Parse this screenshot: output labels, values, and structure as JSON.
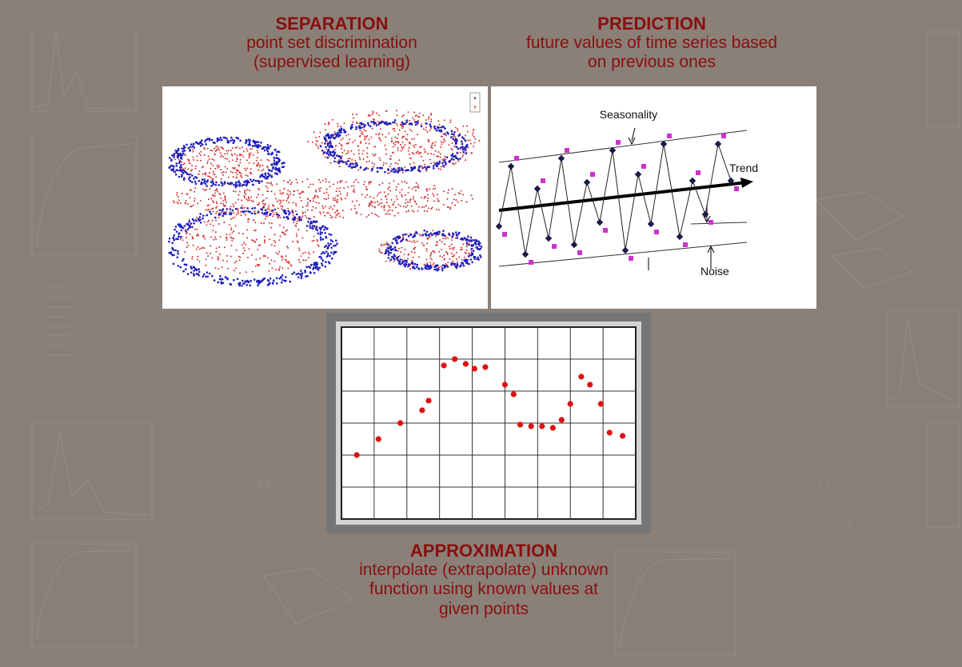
{
  "separation": {
    "title": "SEPARATION",
    "line1": "point set discrimination",
    "line2": "(supervised learning)",
    "class_colors": [
      "#1f1fbf",
      "#d63232"
    ],
    "legend_symbols": [
      "•",
      "+"
    ]
  },
  "prediction": {
    "title": "PREDICTION",
    "line1": "future values of time series based",
    "line2": "on previous ones",
    "labels": {
      "seasonality": "Seasonality",
      "trend": "Trend",
      "noise": "Noise"
    },
    "marker_colors": {
      "actual": "#1a1a4a",
      "predicted": "#cc33cc"
    }
  },
  "approximation": {
    "title": "APPROXIMATION",
    "line1": "interpolate (extrapolate) unknown",
    "line2": "function using known values at",
    "line3": "given points",
    "point_color": "#e01010"
  },
  "chart_data": {
    "type": "scatter",
    "grid": true,
    "x": [
      1,
      2,
      3,
      4,
      4.3,
      5,
      5.5,
      6,
      6.4,
      6.9,
      7.8,
      8.2,
      8.5,
      9,
      9.5,
      10,
      10.4,
      10.8,
      11.3,
      11.7,
      12.2,
      12.6,
      13.2
    ],
    "values": [
      2.0,
      2.5,
      3.0,
      3.4,
      3.7,
      4.8,
      5.0,
      4.85,
      4.7,
      4.75,
      4.2,
      3.9,
      2.95,
      2.9,
      2.9,
      2.85,
      3.1,
      3.6,
      4.45,
      4.2,
      3.6,
      2.7,
      2.6
    ]
  }
}
